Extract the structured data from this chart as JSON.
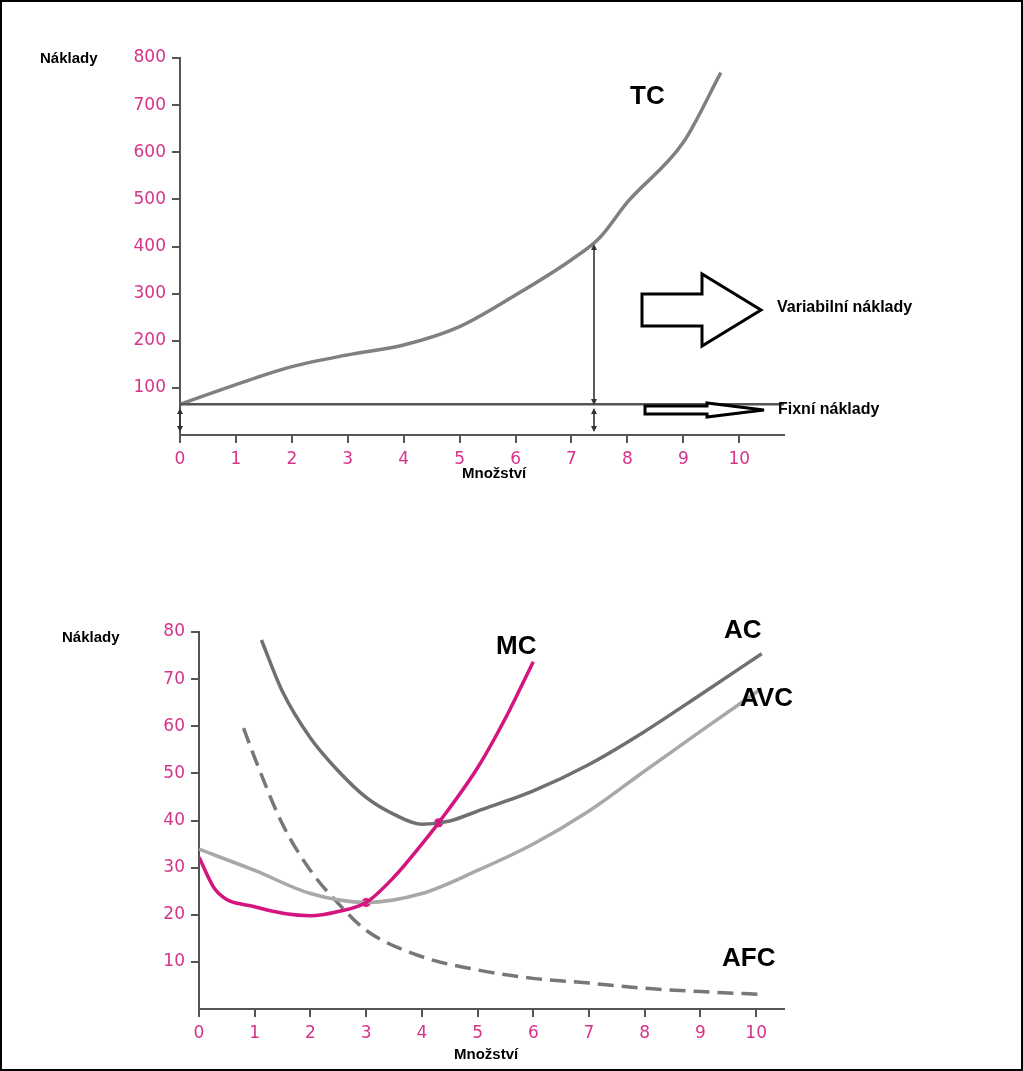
{
  "chart_data": [
    {
      "type": "line",
      "xlabel": "Množství",
      "ylabel": "Náklady",
      "xlim": [
        0,
        10.8
      ],
      "ylim": [
        0,
        800
      ],
      "xticks": [
        0,
        1,
        2,
        3,
        4,
        5,
        6,
        7,
        8,
        9,
        10
      ],
      "yticks": [
        100,
        200,
        300,
        400,
        500,
        600,
        700,
        800
      ],
      "grid": false,
      "legend": false,
      "marker": "none",
      "series": [
        {
          "name": "TC",
          "color": "#808080",
          "line_style": "solid",
          "x": [
            0,
            1,
            2,
            3,
            4,
            5,
            6,
            7,
            7.5,
            8,
            9,
            9.67
          ],
          "values": [
            65,
            107,
            145,
            170,
            191,
            230,
            297,
            372,
            418,
            494,
            621,
            769
          ]
        }
      ],
      "ref_lines": [
        {
          "axis": "y",
          "value": 65,
          "label": "Fixní náklady",
          "color": "#555555"
        }
      ],
      "annotations": [
        "Variabilní náklady"
      ]
    },
    {
      "type": "line",
      "xlabel": "Množství",
      "ylabel": "Náklady",
      "xlim": [
        0,
        10.5
      ],
      "ylim": [
        0,
        80
      ],
      "xticks": [
        0,
        1,
        2,
        3,
        4,
        5,
        6,
        7,
        8,
        9,
        10
      ],
      "yticks": [
        10,
        20,
        30,
        40,
        50,
        60,
        70,
        80
      ],
      "grid": false,
      "legend": false,
      "marker": "none",
      "series": [
        {
          "name": "MC",
          "color": "#d4147f",
          "line_style": "solid",
          "x": [
            0,
            0.3,
            1,
            2,
            2.5,
            3,
            3.5,
            4,
            4.3,
            5,
            5.5,
            6
          ],
          "values": [
            32.2,
            25.2,
            21.7,
            19.8,
            20.7,
            22.6,
            28,
            35,
            39.5,
            51.2,
            61.7,
            73.7
          ]
        },
        {
          "name": "AC",
          "color": "#707070",
          "line_style": "solid",
          "x": [
            1.12,
            1.5,
            2,
            2.5,
            3,
            3.5,
            4,
            4.5,
            5,
            6,
            7,
            8,
            9,
            10.1
          ],
          "values": [
            78.3,
            67.3,
            57.5,
            50.5,
            44.9,
            41.3,
            39.2,
            39.9,
            42,
            46.3,
            51.9,
            58.9,
            66.7,
            75.4
          ]
        },
        {
          "name": "AVC",
          "color": "#a8a8a8",
          "line_style": "solid",
          "x": [
            0,
            1,
            2,
            3,
            4,
            5,
            6,
            7,
            8,
            9,
            10.1
          ],
          "values": [
            33.9,
            29.4,
            24.5,
            22.6,
            24.5,
            29.4,
            35,
            42,
            50.5,
            58.9,
            68
          ]
        },
        {
          "name": "AFC",
          "color": "#777777",
          "line_style": "dashed",
          "x": [
            0.8,
            1,
            1.5,
            2,
            2.5,
            3,
            4,
            5,
            6,
            7,
            8,
            9,
            10.1
          ],
          "values": [
            59.6,
            53.3,
            39.2,
            29.4,
            22.4,
            16.7,
            11.1,
            8.3,
            6.5,
            5.5,
            4.4,
            3.7,
            3.1
          ]
        },
        {
          "type": "scatter",
          "marker": "circle",
          "color": "#d4147f",
          "x": [
            3,
            4.3
          ],
          "values": [
            22.6,
            39.5
          ]
        }
      ]
    }
  ]
}
